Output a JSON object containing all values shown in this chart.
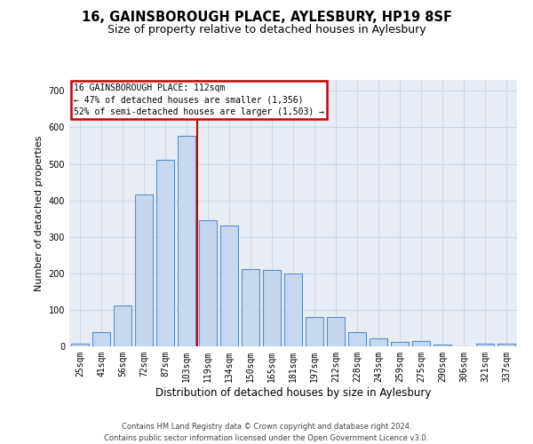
{
  "title": "16, GAINSBOROUGH PLACE, AYLESBURY, HP19 8SF",
  "subtitle": "Size of property relative to detached houses in Aylesbury",
  "xlabel": "Distribution of detached houses by size in Aylesbury",
  "ylabel": "Number of detached properties",
  "categories": [
    "25sqm",
    "41sqm",
    "56sqm",
    "72sqm",
    "87sqm",
    "103sqm",
    "119sqm",
    "134sqm",
    "150sqm",
    "165sqm",
    "181sqm",
    "197sqm",
    "212sqm",
    "228sqm",
    "243sqm",
    "259sqm",
    "275sqm",
    "290sqm",
    "306sqm",
    "321sqm",
    "337sqm"
  ],
  "values": [
    8,
    38,
    112,
    415,
    510,
    577,
    345,
    330,
    212,
    210,
    200,
    80,
    80,
    38,
    22,
    13,
    15,
    5,
    1,
    8,
    7
  ],
  "bar_color": "#c5d8f0",
  "bar_edge_color": "#5b8dc8",
  "vline_x": 5.5,
  "vline_color": "#cc0000",
  "annotation_line1": "16 GAINSBOROUGH PLACE: 112sqm",
  "annotation_line2": "← 47% of detached houses are smaller (1,356)",
  "annotation_line3": "52% of semi-detached houses are larger (1,503) →",
  "annotation_box_facecolor": "#ffffff",
  "annotation_box_edgecolor": "#cc0000",
  "grid_color": "#cdd5e5",
  "bg_color": "#e8edf5",
  "yticks": [
    0,
    100,
    200,
    300,
    400,
    500,
    600,
    700
  ],
  "ylim": [
    0,
    730
  ],
  "footer": "Contains HM Land Registry data © Crown copyright and database right 2024.\nContains public sector information licensed under the Open Government Licence v3.0.",
  "title_fontsize": 10.5,
  "subtitle_fontsize": 9,
  "ylabel_fontsize": 8,
  "xlabel_fontsize": 8.5,
  "tick_fontsize": 7,
  "annot_fontsize": 7,
  "footer_fontsize": 6
}
